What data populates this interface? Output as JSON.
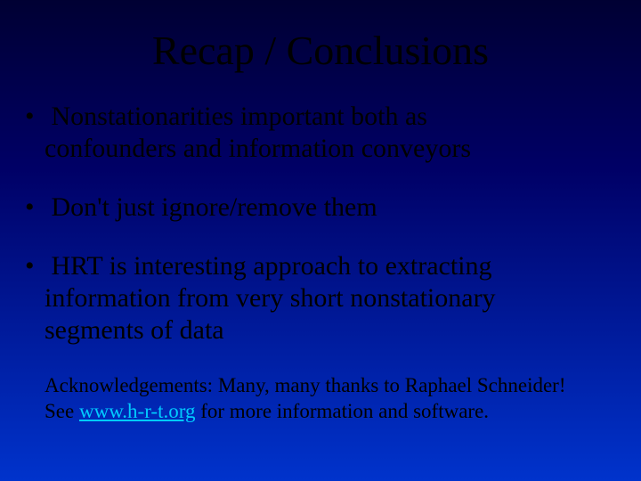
{
  "slide": {
    "title": "Recap / Conclusions",
    "bullets": [
      {
        "dot": "•",
        "first": " Nonstationarities important both as",
        "rest": "confounders and information conveyors"
      },
      {
        "dot": "•",
        "first": " Don't just ignore/remove them",
        "rest": ""
      },
      {
        "dot": "•",
        "first": " HRT is interesting approach to extracting",
        "rest": "information from very short nonstationary segments of data"
      }
    ],
    "ack": {
      "line1": "Acknowledgements: Many, many thanks to Raphael Schneider!",
      "line2a": "See ",
      "link": "www.h-r-t.org",
      "line2b": "  for more information and software."
    },
    "colors": {
      "background_top": "#000033",
      "background_mid": "#000066",
      "background_bottom": "#0033cc",
      "text": "#000000",
      "link": "#00ccff"
    },
    "typography": {
      "font_family": "Times New Roman",
      "title_fontsize": 46,
      "bullet_fontsize": 30,
      "ack_fontsize": 23
    }
  }
}
